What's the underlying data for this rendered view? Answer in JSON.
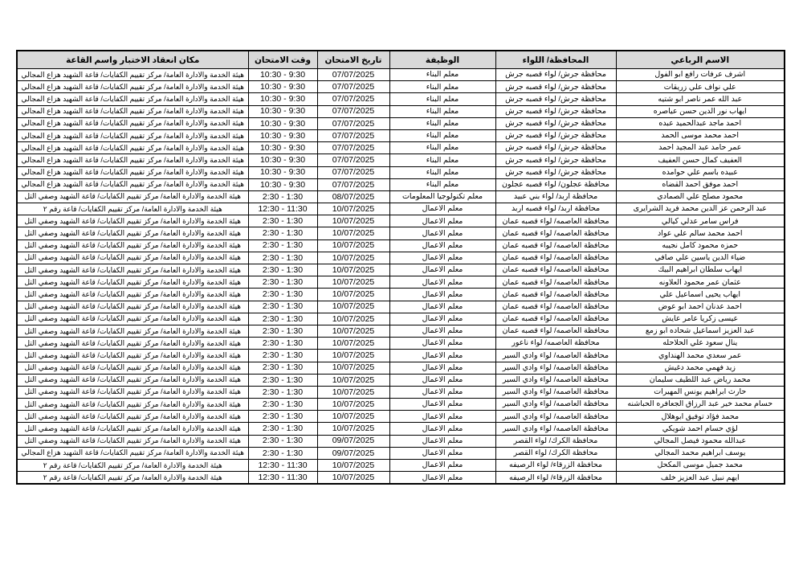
{
  "page": {
    "background": "#ffffff"
  },
  "table": {
    "header_bg": "#d9d9d9",
    "border_color": "#000000",
    "columns": [
      {
        "key": "name",
        "label": "الاسم الرباعي"
      },
      {
        "key": "governorate",
        "label": "المحافظة/ اللواء"
      },
      {
        "key": "job",
        "label": "الوظيفة"
      },
      {
        "key": "date",
        "label": "تاريخ الامتحان"
      },
      {
        "key": "time",
        "label": "وقت الامتحان"
      },
      {
        "key": "location",
        "label": "مكان انعقاد الاختبار واسم القاعة"
      }
    ],
    "rows": [
      {
        "name": "اشرف عرفات رافع ابو الفول",
        "governorate": "محافظة جرش/ لواء قصبه جرش",
        "job": "معلم البناء",
        "date": "07/07/2025",
        "time": "9:30 - 10:30",
        "location": "هيئة الخدمة والادارة العامة/ مركز تقييم الكفايات/ قاعة الشهيد هزاع المجالي"
      },
      {
        "name": "علي نواف علي زريقات",
        "governorate": "محافظة جرش/ لواء قصبه جرش",
        "job": "معلم البناء",
        "date": "07/07/2025",
        "time": "9:30 - 10:30",
        "location": "هيئة الخدمة والادارة العامة/ مركز تقييم الكفايات/ قاعة الشهيد هزاع المجالي"
      },
      {
        "name": "عبد الله عمر ناصر ابو شتيه",
        "governorate": "محافظة جرش/ لواء قصبه جرش",
        "job": "معلم البناء",
        "date": "07/07/2025",
        "time": "9:30 - 10:30",
        "location": "هيئة الخدمة والادارة العامة/ مركز تقييم الكفايات/ قاعة الشهيد هزاع المجالي"
      },
      {
        "name": "ايهاب نور الدين حسن عياصره",
        "governorate": "محافظة جرش/ لواء قصبه جرش",
        "job": "معلم البناء",
        "date": "07/07/2025",
        "time": "9:30 - 10:30",
        "location": "هيئة الخدمة والادارة العامة/ مركز تقييم الكفايات/ قاعة الشهيد هزاع المجالي"
      },
      {
        "name": "احمد ماجد عبدالحميد عبده",
        "governorate": "محافظة جرش/ لواء قصبه جرش",
        "job": "معلم البناء",
        "date": "07/07/2025",
        "time": "9:30 - 10:30",
        "location": "هيئة الخدمة والادارة العامة/ مركز تقييم الكفايات/ قاعة الشهيد هزاع المجالي"
      },
      {
        "name": "احمد محمد موسى الحمد",
        "governorate": "محافظة جرش/ لواء قصبه جرش",
        "job": "معلم البناء",
        "date": "07/07/2025",
        "time": "9:30 - 10:30",
        "location": "هيئة الخدمة والادارة العامة/ مركز تقييم الكفايات/ قاعة الشهيد هزاع المجالي"
      },
      {
        "name": "عمر حامد عبد المجيد احمد",
        "governorate": "محافظة جرش/ لواء قصبه جرش",
        "job": "معلم البناء",
        "date": "07/07/2025",
        "time": "9:30 - 10:30",
        "location": "هيئة الخدمة والادارة العامة/ مركز تقييم الكفايات/ قاعة الشهيد هزاع المجالي"
      },
      {
        "name": "العفيف كمال حسن العفيف",
        "governorate": "محافظة جرش/ لواء قصبه جرش",
        "job": "معلم البناء",
        "date": "07/07/2025",
        "time": "9:30 - 10:30",
        "location": "هيئة الخدمة والادارة العامة/ مركز تقييم الكفايات/ قاعة الشهيد هزاع المجالي"
      },
      {
        "name": "عبيده باسم علي حوامده",
        "governorate": "محافظة جرش/ لواء قصبه جرش",
        "job": "معلم البناء",
        "date": "07/07/2025",
        "time": "9:30 - 10:30",
        "location": "هيئة الخدمة والادارة العامة/ مركز تقييم الكفايات/ قاعة الشهيد هزاع المجالي"
      },
      {
        "name": "احمد موفق احمد القضاه",
        "governorate": "محافظة عجلون/ لواء قصبه عجلون",
        "job": "معلم البناء",
        "date": "07/07/2025",
        "time": "9:30 - 10:30",
        "location": "هيئة الخدمة والادارة العامة/ مركز تقييم الكفايات/ قاعة الشهيد هزاع المجالي"
      },
      {
        "name": "محمود مصلح علي الصمادي",
        "governorate": "محافظة اربد/ لواء بني عبيد",
        "job": "معلم تكنولوجيا المعلومات",
        "date": "08/07/2025",
        "time": "1:30 - 2:30",
        "location": "هيئة الخدمة والادارة العامة/ مركز تقييم الكفايات/ قاعة الشهيد وصفي التل"
      },
      {
        "name": "عبد الرحمن عز الدين محمد فريد الشرايرى",
        "governorate": "محافظة اربد/ لواء قصبه اربد",
        "job": "معلم الاعمال",
        "date": "10/07/2025",
        "time": "11:30 - 12:30",
        "location": "هيئة الخدمة والادارة العامة/ مركز تقييم الكفايات/ قاعة رقم ٢"
      },
      {
        "name": "فراس سامر عدلي كيالي",
        "governorate": "محافظة العاصمه/ لواء قصبه عمان",
        "job": "معلم الاعمال",
        "date": "10/07/2025",
        "time": "1:30 - 2:30",
        "location": "هيئة الخدمة والادارة العامة/ مركز تقييم الكفايات/ قاعة الشهيد وصفي التل"
      },
      {
        "name": "احمد محمد سالم علي عواد",
        "governorate": "محافظة العاصمه/ لواء قصبه عمان",
        "job": "معلم الاعمال",
        "date": "10/07/2025",
        "time": "1:30 - 2:30",
        "location": "هيئة الخدمة والادارة العامة/ مركز تقييم الكفايات/ قاعة الشهيد وصفي التل"
      },
      {
        "name": "حمزه محمود كامل نجيبه",
        "governorate": "محافظة العاصمه/ لواء قصبه عمان",
        "job": "معلم الاعمال",
        "date": "10/07/2025",
        "time": "1:30 - 2:30",
        "location": "هيئة الخدمة والادارة العامة/ مركز تقييم الكفايات/ قاعة الشهيد وصفي التل"
      },
      {
        "name": "ضياء الدين ياسين علي صافي",
        "governorate": "محافظة العاصمه/ لواء قصبه عمان",
        "job": "معلم الاعمال",
        "date": "10/07/2025",
        "time": "1:30 - 2:30",
        "location": "هيئة الخدمة والادارة العامة/ مركز تقييم الكفايات/ قاعة الشهيد وصفي التل"
      },
      {
        "name": "ايهاب سلطان ابراهيم البيك",
        "governorate": "محافظة العاصمه/ لواء قصبه عمان",
        "job": "معلم الاعمال",
        "date": "10/07/2025",
        "time": "1:30 - 2:30",
        "location": "هيئة الخدمة والادارة العامة/ مركز تقييم الكفايات/ قاعة الشهيد وصفي التل"
      },
      {
        "name": "عثمان عمر محمود العلاونه",
        "governorate": "محافظة العاصمه/ لواء قصبه عمان",
        "job": "معلم الاعمال",
        "date": "10/07/2025",
        "time": "1:30 - 2:30",
        "location": "هيئة الخدمة والادارة العامة/ مركز تقييم الكفايات/ قاعة الشهيد وصفي التل"
      },
      {
        "name": "ايهاب يحيى اسماعيل علي",
        "governorate": "محافظة العاصمه/ لواء قصبه عمان",
        "job": "معلم الاعمال",
        "date": "10/07/2025",
        "time": "1:30 - 2:30",
        "location": "هيئة الخدمة والادارة العامة/ مركز تقييم الكفايات/ قاعة الشهيد وصفي التل"
      },
      {
        "name": "احمد عدنان احمد ابو عوض",
        "governorate": "محافظة العاصمه/ لواء قصبه عمان",
        "job": "معلم الاعمال",
        "date": "10/07/2025",
        "time": "1:30 - 2:30",
        "location": "هيئة الخدمة والادارة العامة/ مركز تقييم الكفايات/ قاعة الشهيد وصفي التل"
      },
      {
        "name": "عيسى زكريا عامر عايش",
        "governorate": "محافظة العاصمه/ لواء قصبه عمان",
        "job": "معلم الاعمال",
        "date": "10/07/2025",
        "time": "1:30 - 2:30",
        "location": "هيئة الخدمة والادارة العامة/ مركز تقييم الكفايات/ قاعة الشهيد وصفي التل"
      },
      {
        "name": "عبد العزيز اسماعيل شحاده ابو زمع",
        "governorate": "محافظة العاصمه/ لواء قصبه عمان",
        "job": "معلم الاعمال",
        "date": "10/07/2025",
        "time": "1:30 - 2:30",
        "location": "هيئة الخدمة والادارة العامة/ مركز تقييم الكفايات/ قاعة الشهيد وصفي التل"
      },
      {
        "name": "ينال سعود علي الحلاحله",
        "governorate": "محافظة العاصمه/ لواء ناعور",
        "job": "معلم الاعمال",
        "date": "10/07/2025",
        "time": "1:30 - 2:30",
        "location": "هيئة الخدمة والادارة العامة/ مركز تقييم الكفايات/ قاعة الشهيد وصفي التل"
      },
      {
        "name": "عمر سعدي محمد الهنداوي",
        "governorate": "محافظة العاصمه/ لواء وادي السير",
        "job": "معلم الاعمال",
        "date": "10/07/2025",
        "time": "1:30 - 2:30",
        "location": "هيئة الخدمة والادارة العامة/ مركز تقييم الكفايات/ قاعة الشهيد وصفي التل"
      },
      {
        "name": "زيد فهمي محمد دغيش",
        "governorate": "محافظة العاصمه/ لواء وادي السير",
        "job": "معلم الاعمال",
        "date": "10/07/2025",
        "time": "1:30 - 2:30",
        "location": "هيئة الخدمة والادارة العامة/ مركز تقييم الكفايات/ قاعة الشهيد وصفي التل"
      },
      {
        "name": "محمد رياض عبد اللطيف سليمان",
        "governorate": "محافظة العاصمه/ لواء وادي السير",
        "job": "معلم الاعمال",
        "date": "10/07/2025",
        "time": "1:30 - 2:30",
        "location": "هيئة الخدمة والادارة العامة/ مركز تقييم الكفايات/ قاعة الشهيد وصفي التل"
      },
      {
        "name": "حارث ابراهيم يونس المهيرات",
        "governorate": "محافظة العاصمه/ لواء وادي السير",
        "job": "معلم الاعمال",
        "date": "10/07/2025",
        "time": "1:30 - 2:30",
        "location": "هيئة الخدمة والادارة العامة/ مركز تقييم الكفايات/ قاعة الشهيد وصفي التل"
      },
      {
        "name": "حسام محمد خير عبد الرزاق الجعافره الحباشنه",
        "governorate": "محافظة العاصمه/ لواء وادي السير",
        "job": "معلم الاعمال",
        "date": "10/07/2025",
        "time": "1:30 - 2:30",
        "location": "هيئة الخدمة والادارة العامة/ مركز تقييم الكفايات/ قاعة الشهيد وصفي التل"
      },
      {
        "name": "محمد فؤاد توفيق ابوهلال",
        "governorate": "محافظة العاصمه/ لواء وادي السير",
        "job": "معلم الاعمال",
        "date": "10/07/2025",
        "time": "1:30 - 2:30",
        "location": "هيئة الخدمة والادارة العامة/ مركز تقييم الكفايات/ قاعة الشهيد وصفي التل"
      },
      {
        "name": "لؤي حسام احمد شويكي",
        "governorate": "محافظة العاصمه/ لواء وادي السير",
        "job": "معلم الاعمال",
        "date": "10/07/2025",
        "time": "1:30 - 2:30",
        "location": "هيئة الخدمة والادارة العامة/ مركز تقييم الكفايات/ قاعة الشهيد وصفي التل"
      },
      {
        "name": "عبدالله محمود فيصل المجالي",
        "governorate": "محافظة الكرك/ لواء القصر",
        "job": "معلم الاعمال",
        "date": "09/07/2025",
        "time": "1:30 - 2:30",
        "location": "هيئة الخدمة والادارة العامة/ مركز تقييم الكفايات/ قاعة الشهيد وصفي التل"
      },
      {
        "name": "يوسف ابراهيم محمد المجالي",
        "governorate": "محافظة الكرك/ لواء القصر",
        "job": "معلم الاعمال",
        "date": "09/07/2025",
        "time": "1:30 - 2:30",
        "location": "هيئة الخدمة والادارة العامة/ مركز تقييم الكفايات/ قاعة الشهيد هزاع المجالي"
      },
      {
        "name": "محمد جميل موسى المكحل",
        "governorate": "محافظة الزرقاء/ لواء الرصيفه",
        "job": "معلم الاعمال",
        "date": "10/07/2025",
        "time": "11:30 - 12:30",
        "location": "هيئة الخدمة والادارة العامة/ مركز تقييم الكفايات/ قاعة رقم ٢"
      },
      {
        "name": "ايهم نبيل عبد العزيز خلف",
        "governorate": "محافظة الزرقاء/ لواء الرصيفه",
        "job": "معلم الاعمال",
        "date": "10/07/2025",
        "time": "11:30 - 12:30",
        "location": "هيئة الخدمة والادارة العامة/ مركز تقييم الكفايات/ قاعة رقم ٢"
      }
    ]
  }
}
